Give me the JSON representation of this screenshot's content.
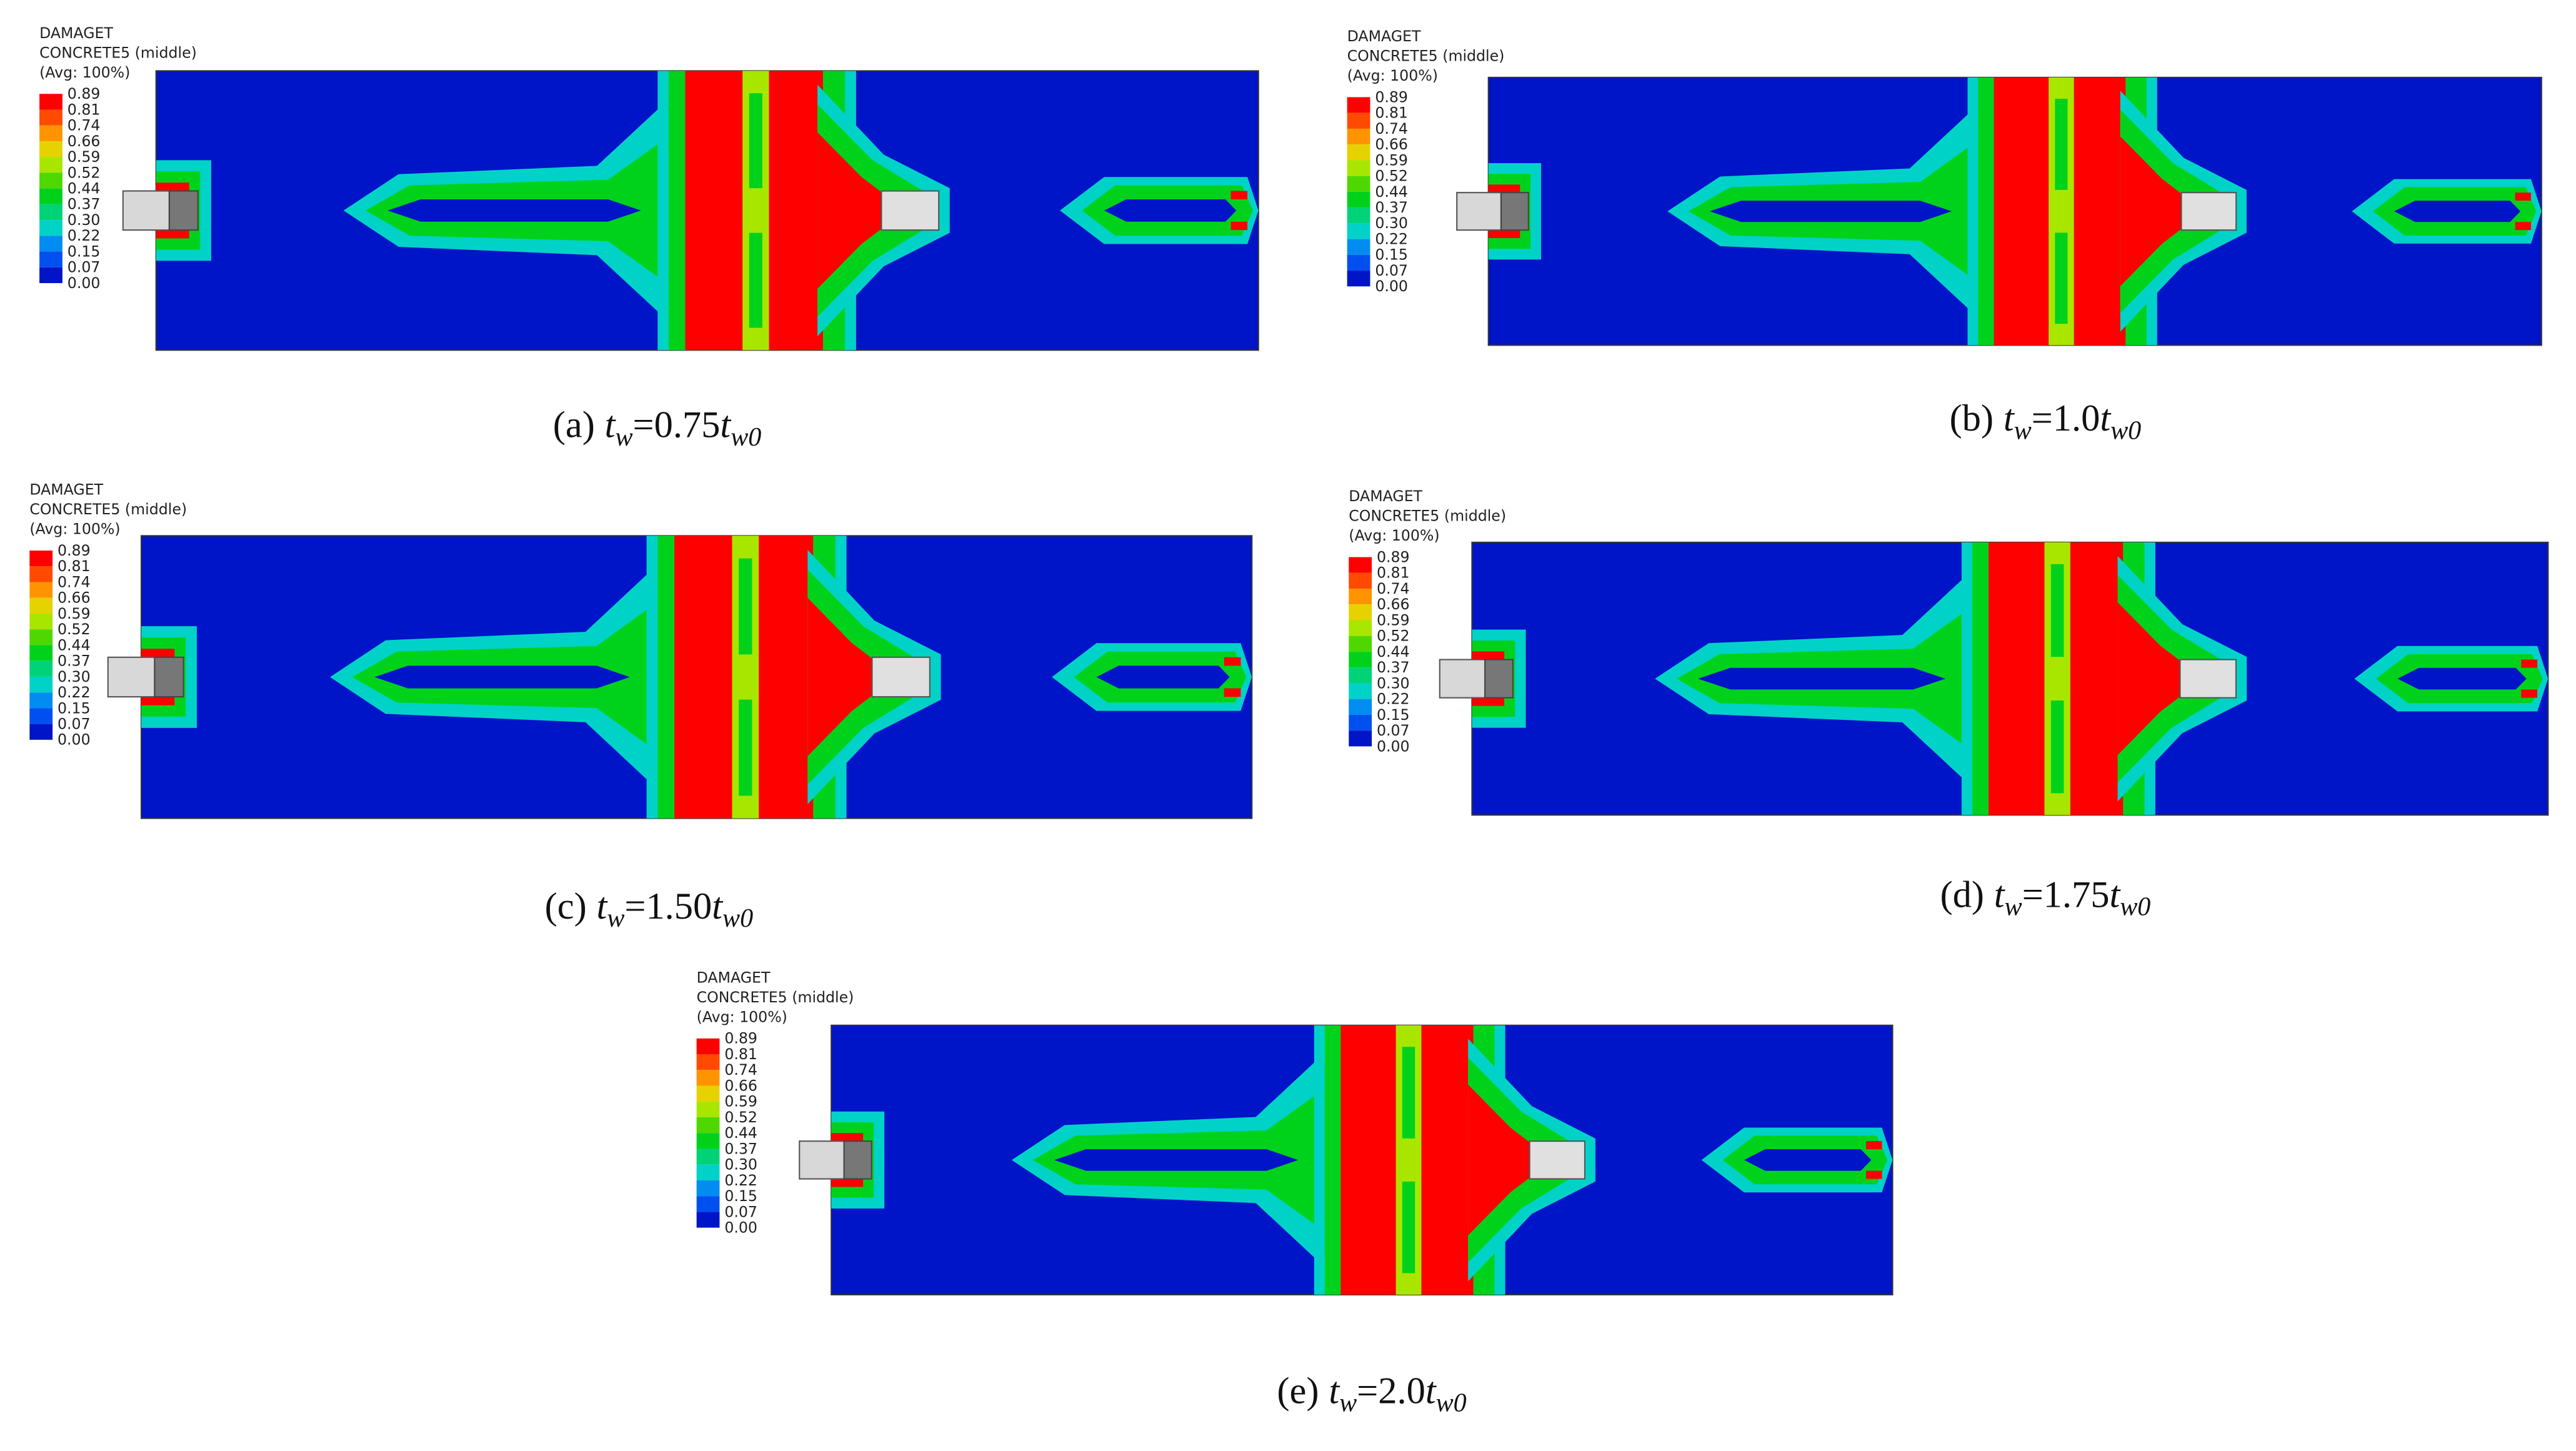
{
  "legend": {
    "title": [
      "DAMAGET",
      "CONCRETE5 (middle)",
      "(Avg: 100%)"
    ],
    "levels": [
      "0.89",
      "0.81",
      "0.74",
      "0.66",
      "0.59",
      "0.52",
      "0.44",
      "0.37",
      "0.30",
      "0.22",
      "0.15",
      "0.07",
      "0.00"
    ],
    "colors": [
      "#ff0000",
      "#ff4a00",
      "#ff9400",
      "#e6d200",
      "#a8e600",
      "#4ed800",
      "#00d21c",
      "#00d277",
      "#00d2c8",
      "#008cf0",
      "#0050f0",
      "#0014c8"
    ]
  },
  "panels": [
    {
      "caption": [
        "(a)",
        "t",
        "w",
        "=0.75",
        "t",
        "w0"
      ]
    },
    {
      "caption": [
        "(b)",
        "t",
        "w",
        "=1.0",
        "t",
        "w0"
      ]
    },
    {
      "caption": [
        "(c)",
        "t",
        "w",
        "=1.50",
        "t",
        "w0"
      ]
    },
    {
      "caption": [
        "(d)",
        "t",
        "w",
        "=1.75",
        "t",
        "w0"
      ]
    },
    {
      "caption": [
        "(e)",
        "t",
        "w",
        "=2.0",
        "t",
        "w0"
      ]
    }
  ]
}
